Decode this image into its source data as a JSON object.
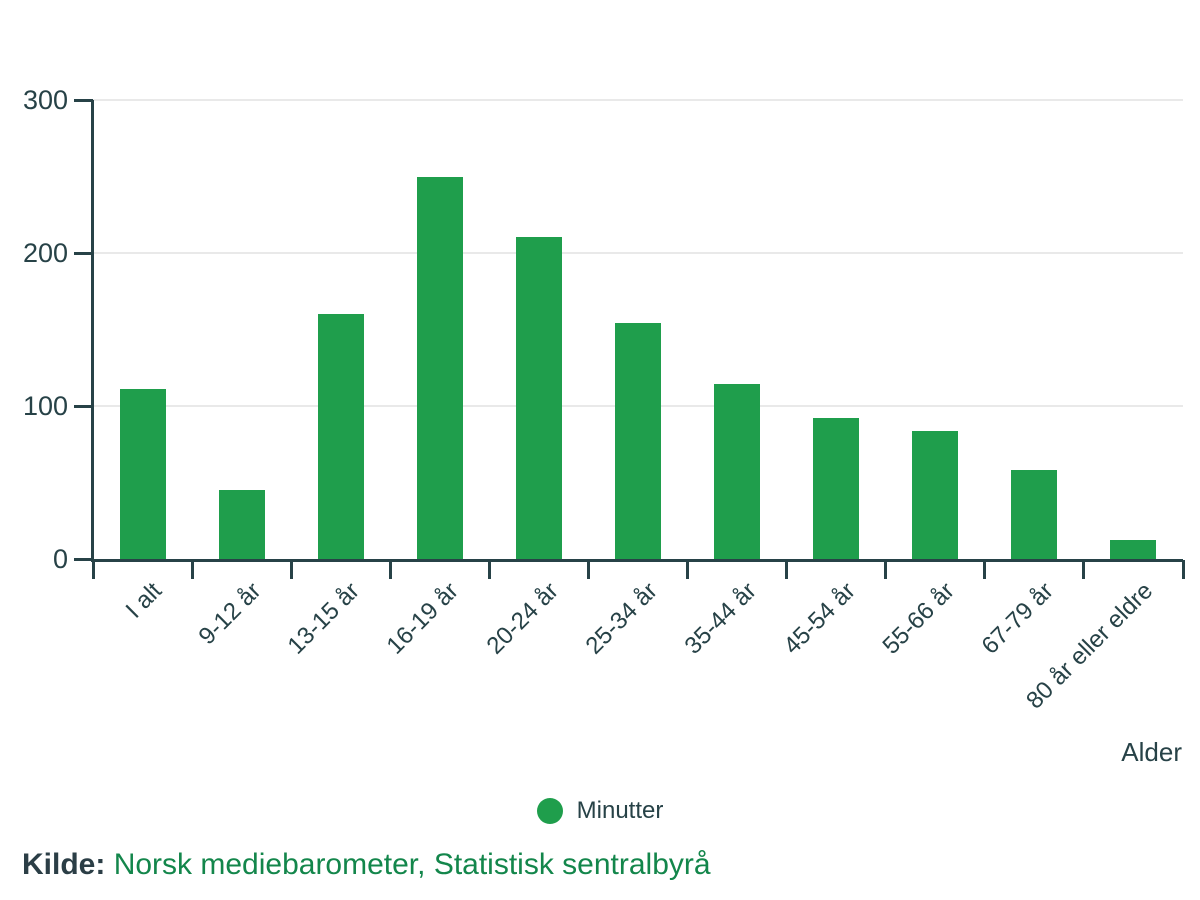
{
  "chart_data": {
    "type": "bar",
    "title": "",
    "categories": [
      "I alt",
      "9-12 år",
      "13-15 år",
      "16-19 år",
      "20-24 år",
      "25-34 år",
      "35-44 år",
      "45-54 år",
      "55-66 år",
      "67-79 år",
      "80 år eller eldre"
    ],
    "series": [
      {
        "name": "Minutter",
        "values": [
          112,
          46,
          161,
          250,
          211,
          155,
          115,
          93,
          84,
          59,
          13
        ]
      }
    ],
    "xlabel": "Alder",
    "ylabel": "",
    "ylim": [
      0,
      300
    ],
    "yticks": [
      0,
      100,
      200,
      300
    ],
    "grid": true,
    "legend_position": "bottom"
  },
  "legend": {
    "label": "Minutter"
  },
  "source": {
    "prefix": "Kilde:",
    "text": "Norsk mediebarometer, Statistisk sentralbyrå"
  },
  "colors": {
    "bar": "#1f9e4c",
    "axis": "#274247",
    "grid": "#e9e9e9",
    "text_dark": "#274247",
    "source_link": "#13864b"
  }
}
